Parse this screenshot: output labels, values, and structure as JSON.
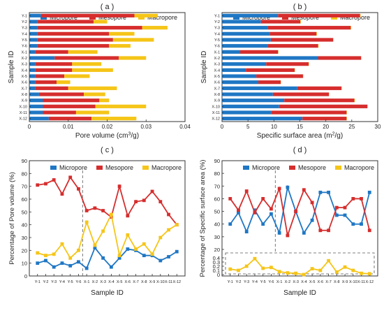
{
  "colors": {
    "micropore": "#1f77c4",
    "mesopore": "#d62d2d",
    "macropore": "#f5c518"
  },
  "legend": [
    "Micropore",
    "Mesopore",
    "Macropore"
  ],
  "sample_ids": [
    "Y-1",
    "Y-2",
    "Y-3",
    "Y-4",
    "Y-5",
    "Y-6",
    "X-1",
    "X-2",
    "X-3",
    "X-4",
    "X-5",
    "X-6",
    "X-7",
    "X-8",
    "X-9",
    "X-10",
    "X-11",
    "X-12"
  ],
  "chart_data": [
    {
      "panel": "( a )",
      "type": "bar",
      "orientation": "horizontal",
      "stacked": true,
      "xlabel": "Pore volume (cm³/g)",
      "ylabel": "Sample ID",
      "xlim": [
        0,
        0.04
      ],
      "xticks": [
        "0",
        "0.01",
        "0.02",
        "0.03",
        "0.04"
      ],
      "categories": [
        "Y-1",
        "Y-2",
        "Y-3",
        "Y-4",
        "Y-5",
        "Y-6",
        "X-1",
        "X-2",
        "X-3",
        "X-4",
        "X-5",
        "X-6",
        "X-7",
        "X-8",
        "X-9",
        "X-10",
        "X-11",
        "X-12"
      ],
      "series": [
        {
          "name": "Micropore",
          "values": [
            0.003,
            0.002,
            0.002,
            0.002,
            0.002,
            0.002,
            0.0015,
            0.0065,
            0.0015,
            0.0015,
            0.0015,
            0.0015,
            0.0015,
            0.0025,
            0.0035,
            0.0035,
            0.0035,
            0.005
          ]
        },
        {
          "name": "Mesopore",
          "values": [
            0.024,
            0.0145,
            0.027,
            0.0185,
            0.0195,
            0.0185,
            0.0085,
            0.0165,
            0.0095,
            0.0095,
            0.0075,
            0.0055,
            0.0085,
            0.0115,
            0.0145,
            0.0135,
            0.0085,
            0.011
          ]
        },
        {
          "name": "Macropore",
          "values": [
            0.006,
            0.0035,
            0.0065,
            0.0065,
            0.0105,
            0.0055,
            0.0075,
            0.007,
            0.0075,
            0.0105,
            0.0065,
            0.0035,
            0.0125,
            0.0055,
            0.0025,
            0.013,
            0.0085,
            0.0115
          ]
        }
      ]
    },
    {
      "panel": "( b )",
      "type": "bar",
      "orientation": "horizontal",
      "stacked": true,
      "xlabel": "Specific surface area (m²/g)",
      "ylabel": "Sample ID",
      "xlim": [
        0,
        30
      ],
      "xticks": [
        "0",
        "5",
        "10",
        "15",
        "20",
        "25",
        "30"
      ],
      "categories": [
        "Y-1",
        "Y-2",
        "Y-3",
        "Y-4",
        "Y-5",
        "Y-6",
        "X-1",
        "X-2",
        "X-3",
        "X-4",
        "X-5",
        "X-6",
        "X-7",
        "X-8",
        "X-9",
        "X-10",
        "X-11",
        "X-12"
      ],
      "series": [
        {
          "name": "Micropore",
          "values": [
            10.8,
            7.5,
            8.8,
            9.2,
            9.4,
            8.8,
            3.5,
            18.5,
            8.5,
            4.6,
            6.6,
            7.0,
            14.5,
            9.8,
            12.0,
            11.0,
            9.5,
            15.5
          ]
        },
        {
          "name": "Mesopore",
          "values": [
            15.8,
            7.6,
            16.0,
            9.0,
            12.0,
            9.7,
            7.3,
            8.3,
            8.2,
            9.4,
            9.0,
            4.3,
            8.5,
            10.8,
            13.5,
            17.0,
            14.5,
            8.5
          ]
        },
        {
          "name": "Macropore",
          "values": [
            0.1,
            0.1,
            0.1,
            0.1,
            0.1,
            0.1,
            0.05,
            0.05,
            0.05,
            0.05,
            0.05,
            0.05,
            0.1,
            0.05,
            0.1,
            0.1,
            0.05,
            0.05
          ]
        }
      ]
    },
    {
      "panel": "( c )",
      "type": "line",
      "xlabel": "Sample ID",
      "ylabel": "Percentage of Pore volume (%)",
      "ylim": [
        0,
        90
      ],
      "yticks": [
        "0",
        "10",
        "20",
        "30",
        "40",
        "50",
        "60",
        "70",
        "80",
        "90"
      ],
      "x": [
        "Y-1",
        "Y-2",
        "Y-3",
        "Y-4",
        "Y-5",
        "Y-6",
        "X-1",
        "X-2",
        "X-3",
        "X-4",
        "X-5",
        "X-6",
        "X-7",
        "X-8",
        "X-9",
        "X-10",
        "X-11",
        "X-12"
      ],
      "series": [
        {
          "name": "Micropore",
          "values": [
            10,
            12,
            7,
            10,
            8,
            11,
            6,
            22,
            14,
            7,
            14,
            21,
            20,
            16,
            16,
            12,
            15,
            19
          ]
        },
        {
          "name": "Mesopore",
          "values": [
            71,
            72,
            75,
            64,
            77,
            68,
            51,
            53,
            51,
            46,
            70,
            47,
            58,
            59,
            66,
            58,
            48,
            40
          ]
        },
        {
          "name": "Macropore",
          "values": [
            18,
            16,
            17,
            25,
            14,
            20,
            42,
            24,
            35,
            48,
            16,
            32,
            21,
            25,
            17,
            30,
            36,
            40
          ]
        }
      ]
    },
    {
      "panel": "( d )",
      "type": "line",
      "xlabel": "Sample ID",
      "ylabel": "Percentage of Specific surface area (%)",
      "yticks": [
        "0",
        "0.1",
        "0.2",
        "0.3",
        "0.4",
        "20",
        "30",
        "40",
        "50",
        "60",
        "70",
        "80",
        "90"
      ],
      "x": [
        "Y-1",
        "Y-2",
        "Y-3",
        "Y-4",
        "Y-5",
        "Y-6",
        "X-1",
        "X-2",
        "X-3",
        "X-4",
        "X-5",
        "X-6",
        "X-7",
        "X-8",
        "X-9",
        "X-10",
        "X-11",
        "X-12"
      ],
      "series": [
        {
          "name": "Micropore",
          "values": [
            40,
            49,
            34,
            51,
            40,
            48,
            33,
            69,
            50,
            33,
            43,
            65,
            65,
            47,
            47,
            40,
            40,
            65
          ]
        },
        {
          "name": "Mesopore",
          "values": [
            60,
            51,
            66,
            49,
            60,
            52,
            68,
            31,
            50,
            67,
            57,
            35,
            35,
            53,
            53,
            60,
            60,
            35
          ]
        },
        {
          "name": "Macropore",
          "values": [
            0.13,
            0.1,
            0.2,
            0.38,
            0.15,
            0.17,
            0.07,
            0.04,
            0.03,
            0.0,
            0.14,
            0.1,
            0.33,
            0.06,
            0.18,
            0.1,
            0.03,
            0.02
          ]
        }
      ]
    }
  ]
}
